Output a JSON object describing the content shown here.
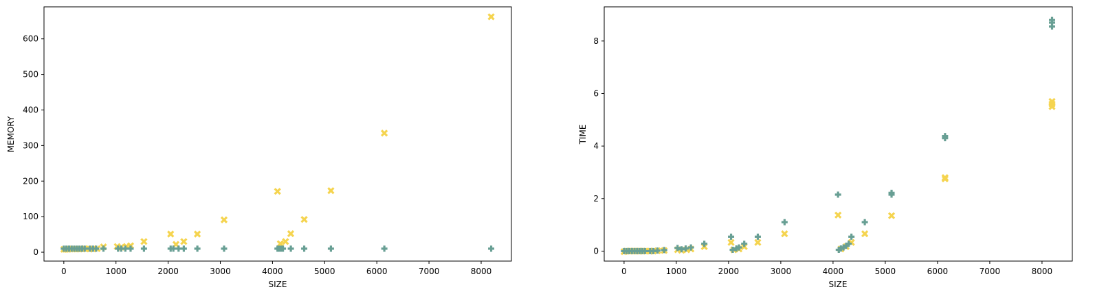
{
  "colors": {
    "series_a": "#f5d44f",
    "series_b": "#689f94",
    "axis": "#000000"
  },
  "chart_data": [
    {
      "type": "scatter",
      "title": "",
      "xlabel": "SIZE",
      "ylabel": "MEMORY",
      "xlim": [
        -380,
        8580
      ],
      "ylim": [
        -25,
        690
      ],
      "xticks": [
        0,
        1000,
        2000,
        3000,
        4000,
        5000,
        6000,
        7000,
        8000
      ],
      "yticks": [
        0,
        100,
        200,
        300,
        400,
        500,
        600
      ],
      "grid": false,
      "series": [
        {
          "marker": "x",
          "color": "#f5d44f",
          "points": [
            [
              0,
              8
            ],
            [
              40,
              8
            ],
            [
              80,
              8
            ],
            [
              120,
              9
            ],
            [
              160,
              9
            ],
            [
              200,
              9
            ],
            [
              250,
              9
            ],
            [
              300,
              9
            ],
            [
              350,
              9
            ],
            [
              400,
              10
            ],
            [
              500,
              9
            ],
            [
              560,
              9
            ],
            [
              640,
              10
            ],
            [
              760,
              15
            ],
            [
              1024,
              16
            ],
            [
              1100,
              14
            ],
            [
              1200,
              16
            ],
            [
              1280,
              18
            ],
            [
              1536,
              30
            ],
            [
              2048,
              51
            ],
            [
              2150,
              22
            ],
            [
              2300,
              30
            ],
            [
              2560,
              51
            ],
            [
              3072,
              91
            ],
            [
              4096,
              171
            ],
            [
              4150,
              24
            ],
            [
              4250,
              30
            ],
            [
              4350,
              52
            ],
            [
              4608,
              92
            ],
            [
              5120,
              173
            ],
            [
              6144,
              335
            ],
            [
              8192,
              662
            ]
          ]
        },
        {
          "marker": "P",
          "color": "#689f94",
          "points": [
            [
              0,
              10
            ],
            [
              50,
              10
            ],
            [
              100,
              10
            ],
            [
              150,
              10
            ],
            [
              200,
              10
            ],
            [
              250,
              10
            ],
            [
              300,
              10
            ],
            [
              350,
              10
            ],
            [
              400,
              10
            ],
            [
              500,
              10
            ],
            [
              560,
              10
            ],
            [
              620,
              10
            ],
            [
              760,
              10
            ],
            [
              1040,
              10
            ],
            [
              1100,
              10
            ],
            [
              1180,
              10
            ],
            [
              1280,
              10
            ],
            [
              1536,
              10
            ],
            [
              2048,
              10
            ],
            [
              2100,
              10
            ],
            [
              2200,
              10
            ],
            [
              2300,
              10
            ],
            [
              2560,
              10
            ],
            [
              3072,
              10
            ],
            [
              4096,
              10
            ],
            [
              4120,
              10
            ],
            [
              4160,
              10
            ],
            [
              4200,
              10
            ],
            [
              4352,
              10
            ],
            [
              4608,
              10
            ],
            [
              5120,
              10
            ],
            [
              6144,
              10
            ],
            [
              8192,
              10
            ]
          ]
        }
      ]
    },
    {
      "type": "scatter",
      "title": "",
      "xlabel": "SIZE",
      "ylabel": "TIME",
      "xlim": [
        -380,
        8580
      ],
      "ylim": [
        -0.38,
        9.3
      ],
      "xticks": [
        0,
        1000,
        2000,
        3000,
        4000,
        5000,
        6000,
        7000,
        8000
      ],
      "yticks": [
        0,
        2,
        4,
        6,
        8
      ],
      "grid": false,
      "series": [
        {
          "marker": "x",
          "color": "#f5d44f",
          "points": [
            [
              0,
              -0.02
            ],
            [
              50,
              0
            ],
            [
              100,
              0
            ],
            [
              150,
              0
            ],
            [
              200,
              0
            ],
            [
              250,
              0
            ],
            [
              300,
              0
            ],
            [
              350,
              0
            ],
            [
              400,
              0
            ],
            [
              500,
              0
            ],
            [
              560,
              0
            ],
            [
              640,
              0.01
            ],
            [
              768,
              0.02
            ],
            [
              1024,
              0.05
            ],
            [
              1100,
              0.03
            ],
            [
              1200,
              0.05
            ],
            [
              1280,
              0.08
            ],
            [
              1536,
              0.17
            ],
            [
              2048,
              0.33
            ],
            [
              2100,
              0.05
            ],
            [
              2200,
              0.08
            ],
            [
              2300,
              0.17
            ],
            [
              2560,
              0.33
            ],
            [
              3072,
              0.66
            ],
            [
              4096,
              1.37
            ],
            [
              4150,
              0.08
            ],
            [
              4250,
              0.17
            ],
            [
              4352,
              0.33
            ],
            [
              4608,
              0.66
            ],
            [
              5120,
              1.35
            ],
            [
              6144,
              2.75
            ],
            [
              6144,
              2.8
            ],
            [
              8192,
              5.5
            ],
            [
              8192,
              5.6
            ],
            [
              8192,
              5.7
            ]
          ]
        },
        {
          "marker": "P",
          "color": "#689f94",
          "points": [
            [
              0,
              0
            ],
            [
              50,
              0
            ],
            [
              100,
              0
            ],
            [
              150,
              0
            ],
            [
              200,
              0
            ],
            [
              250,
              0
            ],
            [
              300,
              0
            ],
            [
              350,
              0
            ],
            [
              400,
              0
            ],
            [
              500,
              0
            ],
            [
              560,
              0
            ],
            [
              640,
              0.02
            ],
            [
              768,
              0.04
            ],
            [
              1024,
              0.12
            ],
            [
              1100,
              0.07
            ],
            [
              1180,
              0.1
            ],
            [
              1280,
              0.14
            ],
            [
              1536,
              0.28
            ],
            [
              2048,
              0.55
            ],
            [
              2080,
              0.05
            ],
            [
              2150,
              0.1
            ],
            [
              2200,
              0.14
            ],
            [
              2300,
              0.28
            ],
            [
              2560,
              0.55
            ],
            [
              3072,
              1.1
            ],
            [
              4096,
              2.15
            ],
            [
              4110,
              0.05
            ],
            [
              4150,
              0.1
            ],
            [
              4200,
              0.14
            ],
            [
              4250,
              0.2
            ],
            [
              4300,
              0.28
            ],
            [
              4352,
              0.55
            ],
            [
              4608,
              1.1
            ],
            [
              5120,
              2.15
            ],
            [
              5120,
              2.22
            ],
            [
              6144,
              4.3
            ],
            [
              6144,
              4.38
            ],
            [
              8192,
              8.55
            ],
            [
              8192,
              8.7
            ],
            [
              8192,
              8.8
            ]
          ]
        }
      ]
    }
  ]
}
